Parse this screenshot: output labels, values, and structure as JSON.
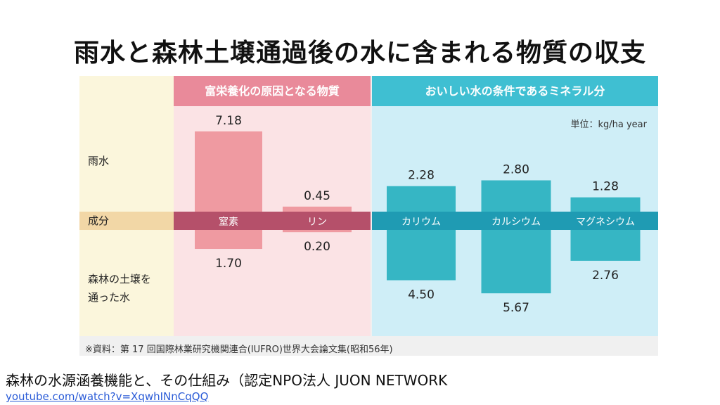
{
  "title": "雨水と森林土壌通過後の水に含まれる物質の収支",
  "headers": {
    "left": "富栄養化の原因となる物質",
    "right": "おいしい水の条件であるミネラル分"
  },
  "unit": "単位：kg/ha year",
  "row_labels": {
    "rain": "雨水",
    "component": "成分",
    "forest_line1": "森林の土壌を",
    "forest_line2": "通った水"
  },
  "source": "※資料：第 17 回国際林業研究機関連合(IUFRO)世界大会論文集(昭和56年)",
  "caption": "森林の水源涵養機能と、その仕組み（認定NPO法人 JUON NETWORK",
  "link": "youtube.com/watch?v=XqwhINnCqQQ",
  "colors": {
    "pink_header": "#e98a9a",
    "pink_bg": "#fbe3e5",
    "pink_bar": "#ef9aa1",
    "pink_strip": "#b5506a",
    "blue_header": "#3fbfd2",
    "blue_bg": "#cfeef7",
    "blue_bar": "#36b6c4",
    "blue_strip": "#1f9bb3",
    "label_bg": "#fbf6dc",
    "label_strip": "#f2d7a6"
  },
  "chart_data": {
    "type": "bar",
    "title": "雨水と森林土壌通過後の水に含まれる物質の収支",
    "categories": [
      "窒素",
      "リン",
      "カリウム",
      "カルシウム",
      "マグネシウム"
    ],
    "groups": [
      {
        "name": "富栄養化の原因となる物質",
        "categories": [
          "窒素",
          "リン"
        ]
      },
      {
        "name": "おいしい水の条件であるミネラル分",
        "categories": [
          "カリウム",
          "カルシウム",
          "マグネシウム"
        ]
      }
    ],
    "series": [
      {
        "name": "雨水",
        "values": [
          7.18,
          0.45,
          2.28,
          2.8,
          1.28
        ],
        "labels": [
          "7.18",
          "0.45",
          "2.28",
          "2.80",
          "1.28"
        ]
      },
      {
        "name": "森林の土壌を通った水",
        "values": [
          1.7,
          0.2,
          4.5,
          5.67,
          2.76
        ],
        "labels": [
          "1.70",
          "0.20",
          "4.50",
          "5.67",
          "2.76"
        ]
      }
    ],
    "unit": "kg/ha year"
  }
}
